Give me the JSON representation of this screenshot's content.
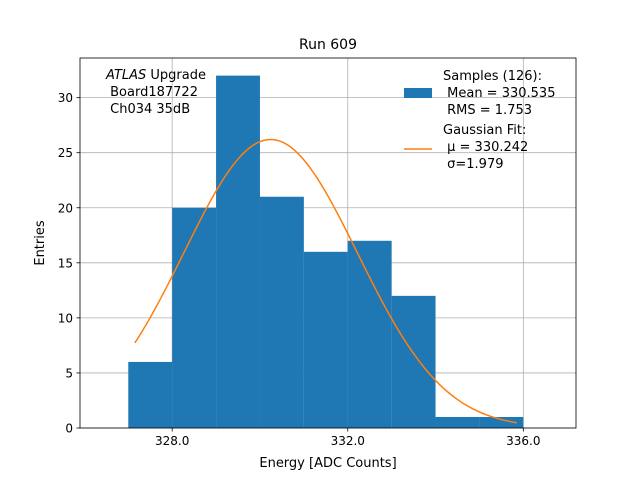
{
  "chart_data": {
    "type": "bar",
    "title": "Run 609",
    "xlabel": "Energy [ADC Counts]",
    "ylabel": "Entries",
    "xlim": [
      325.9,
      337.2
    ],
    "ylim": [
      0,
      33.6
    ],
    "xticks": [
      328,
      332,
      336
    ],
    "xtick_labels": [
      "328.0",
      "332.0",
      "336.0"
    ],
    "yticks": [
      0,
      5,
      10,
      15,
      20,
      25,
      30
    ],
    "ytick_labels": [
      "0",
      "5",
      "10",
      "15",
      "20",
      "25",
      "30"
    ],
    "grid": true,
    "bins": [
      {
        "x0": 327,
        "x1": 328,
        "value": 6
      },
      {
        "x0": 328,
        "x1": 329,
        "value": 20
      },
      {
        "x0": 329,
        "x1": 330,
        "value": 32
      },
      {
        "x0": 330,
        "x1": 331,
        "value": 21
      },
      {
        "x0": 331,
        "x1": 332,
        "value": 16
      },
      {
        "x0": 332,
        "x1": 333,
        "value": 17
      },
      {
        "x0": 333,
        "x1": 334,
        "value": 12
      },
      {
        "x0": 334,
        "x1": 335,
        "value": 1
      },
      {
        "x0": 335,
        "x1": 336,
        "value": 1
      }
    ],
    "fit": {
      "name": "Gaussian Fit",
      "mu": 330.242,
      "sigma": 1.979,
      "amplitude": 26.2,
      "x_range": [
        327.15,
        335.85
      ]
    },
    "series_colors": {
      "histogram": "#1f77b4",
      "fit": "#ff7f0e"
    },
    "legend": {
      "position": "top-right",
      "samples_label": "Samples (126):",
      "samples_mean": " Mean = 330.535",
      "samples_rms": " RMS = 1.753",
      "fit_label": "Gaussian Fit:",
      "fit_mu": " μ = 330.242",
      "fit_sigma": " σ=1.979"
    },
    "annotation": {
      "atlas": "ATLAS",
      "upgrade": " Upgrade",
      "board": " Board187722",
      "channel": " Ch034 35dB"
    }
  }
}
